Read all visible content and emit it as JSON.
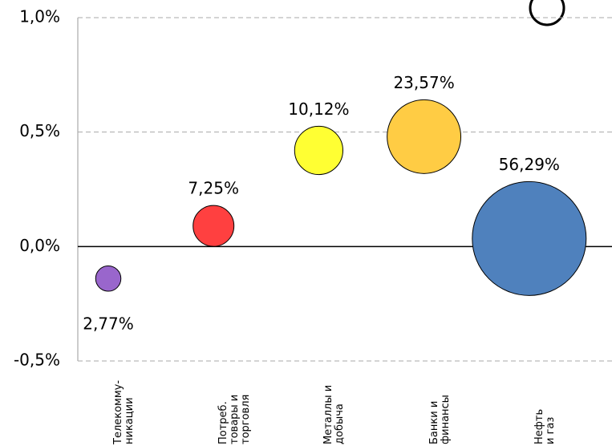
{
  "chart_data": {
    "type": "bubble",
    "categories": [
      "Телекомму-\nникации",
      "Потреб.\nтовары и\nторговля",
      "Металлы и\nдобыча",
      "Банки и\nфинансы",
      "Нефть\nи газ"
    ],
    "values": [
      -0.14,
      0.09,
      0.42,
      0.48,
      0.035
    ],
    "sizes": [
      2.77,
      7.25,
      10.12,
      23.57,
      56.29
    ],
    "size_labels": [
      "2,77%",
      "7,25%",
      "10,12%",
      "23,57%",
      "56,29%"
    ],
    "colors": [
      "#9966cc",
      "#ff4040",
      "#ffff33",
      "#ffcc44",
      "#4f81bd"
    ],
    "ylim": [
      -0.5,
      1.0
    ],
    "yticks": [
      {
        "value": -0.5,
        "label": "-0,5%"
      },
      {
        "value": 0,
        "label": "0,0%"
      },
      {
        "value": 0.5,
        "label": "0,5%"
      },
      {
        "value": 1.0,
        "label": "1,0%"
      }
    ],
    "grid": true
  }
}
